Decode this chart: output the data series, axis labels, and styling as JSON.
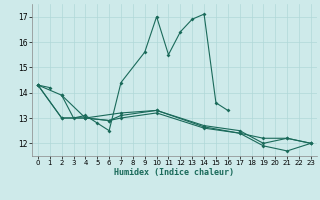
{
  "xlabel": "Humidex (Indice chaleur)",
  "background_color": "#ceeaea",
  "grid_color": "#b0d8d8",
  "line_color": "#1a6a5a",
  "xlim": [
    -0.5,
    23.5
  ],
  "ylim": [
    11.5,
    17.5
  ],
  "yticks": [
    12,
    13,
    14,
    15,
    16,
    17
  ],
  "xticks": [
    0,
    1,
    2,
    3,
    4,
    5,
    6,
    7,
    8,
    9,
    10,
    11,
    12,
    13,
    14,
    15,
    16,
    17,
    18,
    19,
    20,
    21,
    22,
    23
  ],
  "series1_x": [
    0,
    1
  ],
  "series1_y": [
    14.3,
    14.2
  ],
  "series2_x": [
    2,
    3,
    4,
    5,
    6,
    7,
    9,
    10,
    11,
    12,
    13,
    14,
    15,
    16
  ],
  "series2_y": [
    13.9,
    13.0,
    13.1,
    12.8,
    12.5,
    14.4,
    15.6,
    17.0,
    15.5,
    16.4,
    16.9,
    17.1,
    13.6,
    13.3
  ],
  "series3_x": [
    0,
    2,
    4,
    7,
    10,
    14,
    17,
    19,
    21,
    23
  ],
  "series3_y": [
    14.3,
    13.9,
    13.0,
    13.2,
    13.3,
    12.7,
    12.5,
    12.0,
    12.2,
    12.0
  ],
  "series4_x": [
    0,
    2,
    4,
    6,
    7,
    10,
    14,
    17,
    19,
    21,
    23
  ],
  "series4_y": [
    14.3,
    13.0,
    13.0,
    12.9,
    13.0,
    13.2,
    12.6,
    12.4,
    11.9,
    11.7,
    12.0
  ],
  "series5_x": [
    0,
    2,
    4,
    6,
    7,
    10,
    14,
    17,
    19,
    21,
    23
  ],
  "series5_y": [
    14.3,
    13.0,
    13.0,
    12.9,
    13.1,
    13.3,
    12.65,
    12.4,
    12.2,
    12.2,
    12.0
  ]
}
